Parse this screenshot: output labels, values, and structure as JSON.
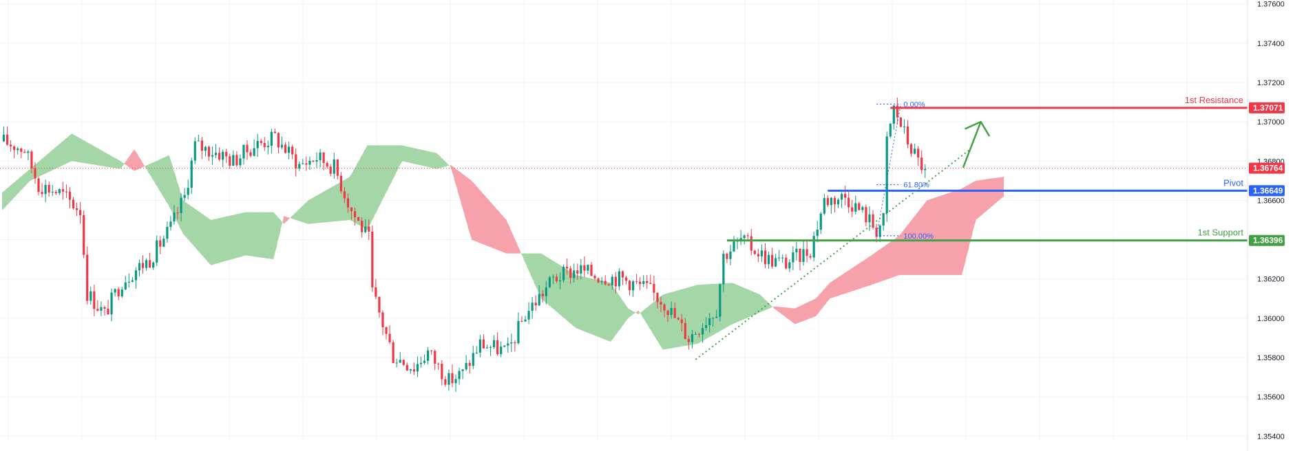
{
  "chart_data": {
    "type": "candlestick",
    "instrument": "",
    "y_axis": {
      "ticks": [
        "1.37600",
        "1.37400",
        "1.37200",
        "1.37000",
        "1.36800",
        "1.36600",
        "1.36400",
        "1.36200",
        "1.36000",
        "1.35800",
        "1.35600",
        "1.35400"
      ],
      "ylim": [
        1.3538,
        1.3762
      ]
    },
    "grid": true,
    "current_price": {
      "value": 1.36764,
      "label": "1.36764",
      "color": "#f23645"
    },
    "levels": [
      {
        "name": "1st Resistance",
        "value": 1.37071,
        "label": "1.37071",
        "color": "#f23645",
        "x_start_index": 255
      },
      {
        "name": "Pivot",
        "value": 1.36649,
        "label": "1.36649",
        "color": "#2962ff",
        "x_start_index": 237
      },
      {
        "name": "1st Support",
        "value": 1.36396,
        "label": "1.36396",
        "color": "#43a047",
        "x_start_index": 208
      }
    ],
    "fibonacci": [
      {
        "label": "0.00%",
        "value": 1.3709
      },
      {
        "label": "61.80%",
        "value": 1.3668
      },
      {
        "label": "100.00%",
        "value": 1.3642
      }
    ],
    "trendline": {
      "from": {
        "index": 199,
        "value": 1.3579
      },
      "to": {
        "index": 278,
        "value": 1.3686
      },
      "color": "#43a047"
    },
    "projection_arrow": {
      "from": {
        "index": 276,
        "value": 1.3677
      },
      "to": {
        "index": 281,
        "value": 1.37
      },
      "color": "#43a047"
    },
    "colors": {
      "up": "#089981",
      "down": "#f23645",
      "cloud_bull": "#a5d6a7",
      "cloud_bear": "#f7a1aa"
    },
    "close_anchors": [
      [
        0,
        1.369
      ],
      [
        6,
        1.3686
      ],
      [
        10,
        1.3668
      ],
      [
        16,
        1.3664
      ],
      [
        22,
        1.3655
      ],
      [
        24,
        1.3613
      ],
      [
        29,
        1.3602
      ],
      [
        34,
        1.3619
      ],
      [
        38,
        1.3625
      ],
      [
        42,
        1.363
      ],
      [
        48,
        1.3646
      ],
      [
        52,
        1.3662
      ],
      [
        55,
        1.3688
      ],
      [
        62,
        1.3684
      ],
      [
        66,
        1.368
      ],
      [
        72,
        1.3688
      ],
      [
        78,
        1.3692
      ],
      [
        85,
        1.3678
      ],
      [
        90,
        1.3682
      ],
      [
        95,
        1.3677
      ],
      [
        100,
        1.3655
      ],
      [
        105,
        1.364
      ],
      [
        106,
        1.3613
      ],
      [
        112,
        1.3581
      ],
      [
        118,
        1.3575
      ],
      [
        122,
        1.3583
      ],
      [
        128,
        1.3568
      ],
      [
        132,
        1.3572
      ],
      [
        137,
        1.3587
      ],
      [
        145,
        1.3583
      ],
      [
        150,
        1.3602
      ],
      [
        158,
        1.362
      ],
      [
        165,
        1.3625
      ],
      [
        170,
        1.3622
      ],
      [
        178,
        1.362
      ],
      [
        185,
        1.3615
      ],
      [
        190,
        1.3608
      ],
      [
        197,
        1.359
      ],
      [
        205,
        1.3605
      ],
      [
        207,
        1.3632
      ],
      [
        212,
        1.364
      ],
      [
        220,
        1.363
      ],
      [
        225,
        1.3628
      ],
      [
        232,
        1.3635
      ],
      [
        236,
        1.366
      ],
      [
        242,
        1.3662
      ],
      [
        248,
        1.3652
      ],
      [
        251,
        1.3645
      ],
      [
        253,
        1.365
      ],
      [
        254,
        1.369
      ],
      [
        256,
        1.3707
      ],
      [
        260,
        1.369
      ],
      [
        263,
        1.368
      ],
      [
        265,
        1.3676
      ]
    ],
    "cloud_anchors": [
      [
        0,
        1.3664,
        1.3655
      ],
      [
        8,
        1.3676,
        1.367
      ],
      [
        20,
        1.3694,
        1.368
      ],
      [
        34,
        1.368,
        1.3676
      ],
      [
        38,
        1.3675,
        1.3686
      ],
      [
        48,
        1.3683,
        1.3657
      ],
      [
        52,
        1.366,
        1.3643
      ],
      [
        60,
        1.365,
        1.3627
      ],
      [
        70,
        1.3654,
        1.3632
      ],
      [
        78,
        1.3654,
        1.363
      ],
      [
        81,
        1.3648,
        1.3652
      ],
      [
        88,
        1.366,
        1.3648
      ],
      [
        100,
        1.3672,
        1.365
      ],
      [
        105,
        1.3688,
        1.3645
      ],
      [
        115,
        1.3688,
        1.368
      ],
      [
        125,
        1.3684,
        1.3676
      ],
      [
        129,
        1.3677,
        1.3678
      ],
      [
        135,
        1.364,
        1.367
      ],
      [
        145,
        1.3633,
        1.365
      ],
      [
        155,
        1.3633,
        1.361
      ],
      [
        165,
        1.3622,
        1.3595
      ],
      [
        175,
        1.3618,
        1.3588
      ],
      [
        180,
        1.3605,
        1.36
      ],
      [
        183,
        1.3602,
        1.3604
      ],
      [
        190,
        1.3612,
        1.3584
      ],
      [
        200,
        1.3617,
        1.3587
      ],
      [
        210,
        1.3618,
        1.3597
      ],
      [
        218,
        1.3612,
        1.3603
      ],
      [
        222,
        1.3605,
        1.3606
      ],
      [
        228,
        1.3597,
        1.3605
      ],
      [
        234,
        1.3601,
        1.361
      ],
      [
        238,
        1.361,
        1.3618
      ],
      [
        250,
        1.3617,
        1.3632
      ],
      [
        258,
        1.3622,
        1.3642
      ],
      [
        266,
        1.3622,
        1.366
      ],
      [
        276,
        1.3622,
        1.3666
      ],
      [
        280,
        1.365,
        1.367
      ],
      [
        288,
        1.3662,
        1.3672
      ]
    ]
  }
}
